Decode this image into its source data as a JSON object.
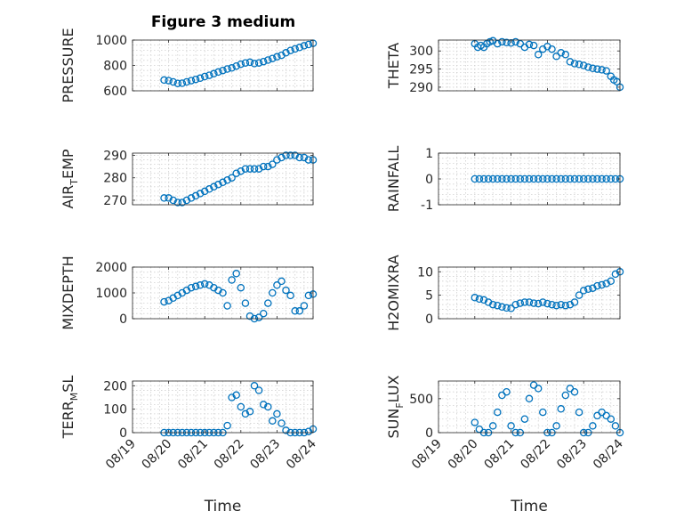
{
  "figure": {
    "title": "Figure 3 medium",
    "colors": {
      "series": "#0072BD",
      "axis": "#262626",
      "grid": "#d0d0d0"
    }
  },
  "chart_data": [
    {
      "id": "pressure",
      "type": "scatter",
      "marker": "circle",
      "title": "Figure 3 medium",
      "ylabel": "PRESSURE",
      "ylim": [
        600,
        1000
      ],
      "yticks": [
        600,
        800,
        1000
      ],
      "xlim": [
        "08/19",
        "08/24"
      ],
      "xticks": [
        "08/19",
        "08/20",
        "08/21",
        "08/22",
        "08/23",
        "08/24"
      ],
      "show_xticklabels": false,
      "grid": true,
      "x": [
        "08/19 21:00",
        "08/20 00:00",
        "08/20 03:00",
        "08/20 06:00",
        "08/20 09:00",
        "08/20 12:00",
        "08/20 15:00",
        "08/20 18:00",
        "08/20 21:00",
        "08/21 00:00",
        "08/21 03:00",
        "08/21 06:00",
        "08/21 09:00",
        "08/21 12:00",
        "08/21 15:00",
        "08/21 18:00",
        "08/21 21:00",
        "08/22 00:00",
        "08/22 03:00",
        "08/22 06:00",
        "08/22 09:00",
        "08/22 12:00",
        "08/22 15:00",
        "08/22 18:00",
        "08/22 21:00",
        "08/23 00:00",
        "08/23 03:00",
        "08/23 06:00",
        "08/23 09:00",
        "08/23 12:00",
        "08/23 15:00",
        "08/23 18:00",
        "08/23 21:00",
        "08/24 00:00"
      ],
      "y": [
        685,
        680,
        670,
        658,
        660,
        670,
        680,
        690,
        700,
        712,
        722,
        735,
        748,
        760,
        772,
        780,
        795,
        810,
        820,
        825,
        815,
        820,
        830,
        842,
        855,
        868,
        880,
        900,
        918,
        930,
        942,
        955,
        965,
        975
      ]
    },
    {
      "id": "theta",
      "type": "scatter",
      "marker": "circle",
      "ylabel": "THETA",
      "ylim": [
        289,
        303
      ],
      "yticks": [
        290,
        295,
        300
      ],
      "xlim": [
        "08/19",
        "08/24"
      ],
      "xticks": [
        "08/19",
        "08/20",
        "08/21",
        "08/22",
        "08/23",
        "08/24"
      ],
      "show_xticklabels": false,
      "grid": true,
      "x": [
        "08/20 00:00",
        "08/20 02:00",
        "08/20 04:00",
        "08/20 06:00",
        "08/20 08:00",
        "08/20 10:00",
        "08/20 12:00",
        "08/20 15:00",
        "08/20 18:00",
        "08/20 21:00",
        "08/21 00:00",
        "08/21 03:00",
        "08/21 06:00",
        "08/21 09:00",
        "08/21 12:00",
        "08/21 15:00",
        "08/21 18:00",
        "08/21 21:00",
        "08/22 00:00",
        "08/22 03:00",
        "08/22 06:00",
        "08/22 09:00",
        "08/22 12:00",
        "08/22 15:00",
        "08/22 18:00",
        "08/22 21:00",
        "08/23 00:00",
        "08/23 03:00",
        "08/23 06:00",
        "08/23 09:00",
        "08/23 12:00",
        "08/23 15:00",
        "08/23 18:00",
        "08/23 20:00",
        "08/23 22:00",
        "08/24 00:00"
      ],
      "y": [
        302.0,
        301.0,
        301.5,
        301.0,
        302.0,
        302.5,
        302.8,
        302.0,
        302.5,
        302.3,
        302.2,
        302.5,
        302.0,
        301.0,
        301.8,
        301.5,
        299.0,
        300.5,
        301.2,
        300.5,
        298.5,
        299.5,
        299.0,
        297.0,
        296.5,
        296.3,
        296.0,
        295.5,
        295.2,
        295.0,
        294.8,
        294.5,
        293.0,
        292.0,
        291.5,
        290.0
      ]
    },
    {
      "id": "air_temp",
      "type": "scatter",
      "marker": "circle",
      "ylabel_main": "AIR",
      "ylabel_sub": "T",
      "ylabel_rest": "EMP",
      "ylim": [
        268,
        291
      ],
      "yticks": [
        270,
        280,
        290
      ],
      "xlim": [
        "08/19",
        "08/24"
      ],
      "xticks": [
        "08/19",
        "08/20",
        "08/21",
        "08/22",
        "08/23",
        "08/24"
      ],
      "show_xticklabels": false,
      "grid": true,
      "x": [
        "08/19 21:00",
        "08/20 00:00",
        "08/20 03:00",
        "08/20 06:00",
        "08/20 09:00",
        "08/20 12:00",
        "08/20 15:00",
        "08/20 18:00",
        "08/20 21:00",
        "08/21 00:00",
        "08/21 03:00",
        "08/21 06:00",
        "08/21 09:00",
        "08/21 12:00",
        "08/21 15:00",
        "08/21 18:00",
        "08/21 21:00",
        "08/22 00:00",
        "08/22 03:00",
        "08/22 06:00",
        "08/22 09:00",
        "08/22 12:00",
        "08/22 15:00",
        "08/22 18:00",
        "08/22 21:00",
        "08/23 00:00",
        "08/23 03:00",
        "08/23 06:00",
        "08/23 09:00",
        "08/23 12:00",
        "08/23 15:00",
        "08/23 18:00",
        "08/23 21:00",
        "08/24 00:00"
      ],
      "y": [
        271,
        271,
        270,
        269,
        269,
        270,
        271,
        272,
        273,
        274,
        275,
        276,
        277,
        278,
        279,
        280,
        282,
        283,
        284,
        284,
        284,
        284,
        285,
        285,
        286,
        288,
        289,
        290,
        290,
        290,
        289,
        289,
        288,
        288
      ]
    },
    {
      "id": "rainfall",
      "type": "scatter",
      "marker": "circle",
      "ylabel": "RAINFALL",
      "ylim": [
        -1,
        1
      ],
      "yticks": [
        -1,
        0,
        1
      ],
      "xlim": [
        "08/19",
        "08/24"
      ],
      "xticks": [
        "08/19",
        "08/20",
        "08/21",
        "08/22",
        "08/23",
        "08/24"
      ],
      "show_xticklabels": false,
      "grid": true,
      "x": [
        "08/20 00:00",
        "08/20 03:00",
        "08/20 06:00",
        "08/20 09:00",
        "08/20 12:00",
        "08/20 15:00",
        "08/20 18:00",
        "08/20 21:00",
        "08/21 00:00",
        "08/21 03:00",
        "08/21 06:00",
        "08/21 09:00",
        "08/21 12:00",
        "08/21 15:00",
        "08/21 18:00",
        "08/21 21:00",
        "08/22 00:00",
        "08/22 03:00",
        "08/22 06:00",
        "08/22 09:00",
        "08/22 12:00",
        "08/22 15:00",
        "08/22 18:00",
        "08/22 21:00",
        "08/23 00:00",
        "08/23 03:00",
        "08/23 06:00",
        "08/23 09:00",
        "08/23 12:00",
        "08/23 15:00",
        "08/23 18:00",
        "08/23 21:00",
        "08/24 00:00"
      ],
      "y": [
        0,
        0,
        0,
        0,
        0,
        0,
        0,
        0,
        0,
        0,
        0,
        0,
        0,
        0,
        0,
        0,
        0,
        0,
        0,
        0,
        0,
        0,
        0,
        0,
        0,
        0,
        0,
        0,
        0,
        0,
        0,
        0,
        0
      ]
    },
    {
      "id": "mixdepth",
      "type": "scatter",
      "marker": "circle",
      "ylabel": "MIXDEPTH",
      "ylim": [
        0,
        2000
      ],
      "yticks": [
        0,
        1000,
        2000
      ],
      "xlim": [
        "08/19",
        "08/24"
      ],
      "xticks": [
        "08/19",
        "08/20",
        "08/21",
        "08/22",
        "08/23",
        "08/24"
      ],
      "show_xticklabels": false,
      "grid": true,
      "x": [
        "08/19 21:00",
        "08/20 00:00",
        "08/20 03:00",
        "08/20 06:00",
        "08/20 09:00",
        "08/20 12:00",
        "08/20 15:00",
        "08/20 18:00",
        "08/20 21:00",
        "08/21 00:00",
        "08/21 03:00",
        "08/21 06:00",
        "08/21 09:00",
        "08/21 12:00",
        "08/21 15:00",
        "08/21 18:00",
        "08/21 21:00",
        "08/22 00:00",
        "08/22 03:00",
        "08/22 06:00",
        "08/22 09:00",
        "08/22 12:00",
        "08/22 15:00",
        "08/22 18:00",
        "08/22 21:00",
        "08/23 00:00",
        "08/23 03:00",
        "08/23 06:00",
        "08/23 09:00",
        "08/23 12:00",
        "08/23 15:00",
        "08/23 18:00",
        "08/23 21:00",
        "08/24 00:00"
      ],
      "y": [
        650,
        700,
        800,
        900,
        1000,
        1100,
        1200,
        1250,
        1300,
        1350,
        1300,
        1200,
        1100,
        1000,
        500,
        1500,
        1750,
        1200,
        600,
        100,
        0,
        50,
        200,
        600,
        1000,
        1300,
        1450,
        1100,
        900,
        300,
        300,
        500,
        900,
        950
      ]
    },
    {
      "id": "h2omixra",
      "type": "scatter",
      "marker": "circle",
      "ylabel": "H2OMIXRA",
      "ylim": [
        0,
        11
      ],
      "yticks": [
        0,
        5,
        10
      ],
      "xlim": [
        "08/19",
        "08/24"
      ],
      "xticks": [
        "08/19",
        "08/20",
        "08/21",
        "08/22",
        "08/23",
        "08/24"
      ],
      "show_xticklabels": false,
      "grid": true,
      "x": [
        "08/20 00:00",
        "08/20 03:00",
        "08/20 06:00",
        "08/20 09:00",
        "08/20 12:00",
        "08/20 15:00",
        "08/20 18:00",
        "08/20 21:00",
        "08/21 00:00",
        "08/21 03:00",
        "08/21 06:00",
        "08/21 09:00",
        "08/21 12:00",
        "08/21 15:00",
        "08/21 18:00",
        "08/21 21:00",
        "08/22 00:00",
        "08/22 03:00",
        "08/22 06:00",
        "08/22 09:00",
        "08/22 12:00",
        "08/22 15:00",
        "08/22 18:00",
        "08/22 21:00",
        "08/23 00:00",
        "08/23 03:00",
        "08/23 06:00",
        "08/23 09:00",
        "08/23 12:00",
        "08/23 15:00",
        "08/23 18:00",
        "08/23 21:00",
        "08/24 00:00"
      ],
      "y": [
        4.5,
        4.2,
        4.0,
        3.5,
        3.0,
        2.8,
        2.5,
        2.3,
        2.2,
        3.0,
        3.3,
        3.5,
        3.5,
        3.3,
        3.2,
        3.5,
        3.2,
        3.0,
        2.8,
        3.0,
        2.8,
        3.0,
        3.5,
        5.0,
        6.0,
        6.3,
        6.5,
        7.0,
        7.2,
        7.5,
        8.0,
        9.5,
        10.0
      ]
    },
    {
      "id": "terr_msl",
      "type": "scatter",
      "marker": "circle",
      "ylabel_main": "TERR",
      "ylabel_sub": "M",
      "ylabel_rest": "SL",
      "ylim": [
        0,
        220
      ],
      "yticks": [
        0,
        100,
        200
      ],
      "xlim": [
        "08/19",
        "08/24"
      ],
      "xticks": [
        "08/19",
        "08/20",
        "08/21",
        "08/22",
        "08/23",
        "08/24"
      ],
      "xlabel": "Time",
      "show_xticklabels": true,
      "grid": true,
      "x": [
        "08/19 21:00",
        "08/20 00:00",
        "08/20 03:00",
        "08/20 06:00",
        "08/20 09:00",
        "08/20 12:00",
        "08/20 15:00",
        "08/20 18:00",
        "08/20 21:00",
        "08/21 00:00",
        "08/21 03:00",
        "08/21 06:00",
        "08/21 09:00",
        "08/21 12:00",
        "08/21 15:00",
        "08/21 18:00",
        "08/21 21:00",
        "08/22 00:00",
        "08/22 03:00",
        "08/22 06:00",
        "08/22 09:00",
        "08/22 12:00",
        "08/22 15:00",
        "08/22 18:00",
        "08/22 21:00",
        "08/23 00:00",
        "08/23 03:00",
        "08/23 06:00",
        "08/23 09:00",
        "08/23 12:00",
        "08/23 15:00",
        "08/23 18:00",
        "08/23 21:00",
        "08/24 00:00"
      ],
      "y": [
        0,
        0,
        0,
        0,
        0,
        0,
        0,
        0,
        0,
        0,
        0,
        0,
        0,
        0,
        30,
        150,
        160,
        110,
        80,
        90,
        200,
        180,
        120,
        110,
        50,
        80,
        40,
        10,
        0,
        0,
        0,
        0,
        5,
        15
      ]
    },
    {
      "id": "sun_flux",
      "type": "scatter",
      "marker": "circle",
      "ylabel_main": "SUN",
      "ylabel_sub": "F",
      "ylabel_rest": "LUX",
      "ylim": [
        0,
        760
      ],
      "yticks": [
        0,
        500
      ],
      "xlim": [
        "08/19",
        "08/24"
      ],
      "xticks": [
        "08/19",
        "08/20",
        "08/21",
        "08/22",
        "08/23",
        "08/24"
      ],
      "xlabel": "Time",
      "show_xticklabels": true,
      "grid": true,
      "x": [
        "08/20 00:00",
        "08/20 03:00",
        "08/20 06:00",
        "08/20 09:00",
        "08/20 12:00",
        "08/20 15:00",
        "08/20 18:00",
        "08/20 21:00",
        "08/21 00:00",
        "08/21 03:00",
        "08/21 06:00",
        "08/21 09:00",
        "08/21 12:00",
        "08/21 15:00",
        "08/21 18:00",
        "08/21 21:00",
        "08/22 00:00",
        "08/22 03:00",
        "08/22 06:00",
        "08/22 09:00",
        "08/22 12:00",
        "08/22 15:00",
        "08/22 18:00",
        "08/22 21:00",
        "08/23 00:00",
        "08/23 03:00",
        "08/23 06:00",
        "08/23 09:00",
        "08/23 12:00",
        "08/23 15:00",
        "08/23 18:00",
        "08/23 21:00",
        "08/24 00:00"
      ],
      "y": [
        150,
        50,
        0,
        0,
        100,
        300,
        550,
        600,
        100,
        0,
        0,
        200,
        500,
        700,
        650,
        300,
        0,
        0,
        100,
        350,
        550,
        650,
        600,
        300,
        0,
        0,
        100,
        250,
        300,
        250,
        200,
        100,
        0
      ]
    }
  ]
}
